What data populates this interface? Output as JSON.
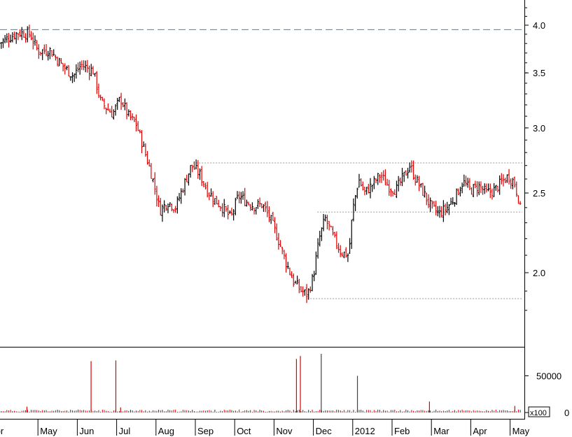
{
  "chart_data": [
    {
      "type": "candlestick",
      "title": "",
      "ylabel": "",
      "ylim": [
        1.75,
        4.3
      ],
      "y_scale": "log",
      "y_ticks": [
        "4.0",
        "3.5",
        "3.0",
        "2.5",
        "2.0"
      ],
      "y_tick_values": [
        4.0,
        3.5,
        3.0,
        2.5,
        2.0
      ],
      "x_month_labels": [
        "Apr",
        "May",
        "Jun",
        "Jul",
        "Aug",
        "Sep",
        "Oct",
        "Nov",
        "Dec",
        "2012",
        "Feb",
        "Mar",
        "Apr",
        "May"
      ],
      "up_color": "#000000",
      "down_color": "#e00000",
      "reference_lines": [
        {
          "style": "dashed",
          "value": 3.95
        },
        {
          "style": "dotted",
          "value": 2.72
        },
        {
          "style": "dotted",
          "value": 2.37
        },
        {
          "style": "dotted",
          "value": 1.86
        }
      ],
      "close_path": [
        {
          "m": 0.0,
          "v": 3.8
        },
        {
          "m": 0.5,
          "v": 3.92
        },
        {
          "m": 0.8,
          "v": 3.9
        },
        {
          "m": 1.0,
          "v": 3.72
        },
        {
          "m": 1.3,
          "v": 3.73
        },
        {
          "m": 1.6,
          "v": 3.58
        },
        {
          "m": 1.9,
          "v": 3.47
        },
        {
          "m": 2.1,
          "v": 3.58
        },
        {
          "m": 2.4,
          "v": 3.52
        },
        {
          "m": 2.6,
          "v": 3.22
        },
        {
          "m": 2.9,
          "v": 3.12
        },
        {
          "m": 3.1,
          "v": 3.26
        },
        {
          "m": 3.3,
          "v": 3.1
        },
        {
          "m": 3.5,
          "v": 3.03
        },
        {
          "m": 3.7,
          "v": 2.82
        },
        {
          "m": 3.9,
          "v": 2.62
        },
        {
          "m": 4.1,
          "v": 2.38
        },
        {
          "m": 4.3,
          "v": 2.44
        },
        {
          "m": 4.5,
          "v": 2.4
        },
        {
          "m": 4.7,
          "v": 2.55
        },
        {
          "m": 4.9,
          "v": 2.7
        },
        {
          "m": 5.1,
          "v": 2.64
        },
        {
          "m": 5.3,
          "v": 2.52
        },
        {
          "m": 5.5,
          "v": 2.45
        },
        {
          "m": 5.7,
          "v": 2.4
        },
        {
          "m": 5.9,
          "v": 2.33
        },
        {
          "m": 6.1,
          "v": 2.48
        },
        {
          "m": 6.3,
          "v": 2.44
        },
        {
          "m": 6.5,
          "v": 2.41
        },
        {
          "m": 6.7,
          "v": 2.42
        },
        {
          "m": 6.9,
          "v": 2.33
        },
        {
          "m": 7.1,
          "v": 2.2
        },
        {
          "m": 7.3,
          "v": 2.06
        },
        {
          "m": 7.5,
          "v": 1.95
        },
        {
          "m": 7.7,
          "v": 1.9
        },
        {
          "m": 7.85,
          "v": 1.88
        },
        {
          "m": 8.0,
          "v": 1.98
        },
        {
          "m": 8.15,
          "v": 2.2
        },
        {
          "m": 8.3,
          "v": 2.33
        },
        {
          "m": 8.5,
          "v": 2.21
        },
        {
          "m": 8.7,
          "v": 2.12
        },
        {
          "m": 8.9,
          "v": 2.1
        },
        {
          "m": 9.0,
          "v": 2.38
        },
        {
          "m": 9.15,
          "v": 2.6
        },
        {
          "m": 9.3,
          "v": 2.5
        },
        {
          "m": 9.5,
          "v": 2.56
        },
        {
          "m": 9.7,
          "v": 2.63
        },
        {
          "m": 9.9,
          "v": 2.55
        },
        {
          "m": 10.1,
          "v": 2.52
        },
        {
          "m": 10.3,
          "v": 2.62
        },
        {
          "m": 10.45,
          "v": 2.7
        },
        {
          "m": 10.6,
          "v": 2.6
        },
        {
          "m": 10.8,
          "v": 2.5
        },
        {
          "m": 11.0,
          "v": 2.4
        },
        {
          "m": 11.2,
          "v": 2.36
        },
        {
          "m": 11.4,
          "v": 2.4
        },
        {
          "m": 11.6,
          "v": 2.47
        },
        {
          "m": 11.8,
          "v": 2.58
        },
        {
          "m": 12.0,
          "v": 2.52
        },
        {
          "m": 12.2,
          "v": 2.55
        },
        {
          "m": 12.4,
          "v": 2.5
        },
        {
          "m": 12.6,
          "v": 2.52
        },
        {
          "m": 12.8,
          "v": 2.58
        },
        {
          "m": 12.95,
          "v": 2.62
        },
        {
          "m": 13.1,
          "v": 2.58
        },
        {
          "m": 13.2,
          "v": 2.48
        },
        {
          "m": 13.28,
          "v": 2.36
        }
      ]
    },
    {
      "type": "bar",
      "title": "",
      "ylabel": "",
      "ylim": [
        0,
        80000
      ],
      "y_ticks": [
        "50000",
        "0"
      ],
      "y_tick_values": [
        50000,
        0
      ],
      "multiplier_label": "x100",
      "baseline_volume": 2500,
      "spikes": [
        {
          "m": 2.35,
          "v": 70000
        },
        {
          "m": 2.98,
          "v": 71000
        },
        {
          "m": 7.57,
          "v": 73000
        },
        {
          "m": 7.67,
          "v": 77000
        },
        {
          "m": 8.2,
          "v": 80000,
          "color": "#444444"
        },
        {
          "m": 9.12,
          "v": 50000,
          "color": "#444444"
        },
        {
          "m": 10.95,
          "v": 15000
        },
        {
          "m": 3.1,
          "v": 7000
        },
        {
          "m": 0.72,
          "v": 8000
        },
        {
          "m": 13.12,
          "v": 9000
        }
      ]
    }
  ]
}
